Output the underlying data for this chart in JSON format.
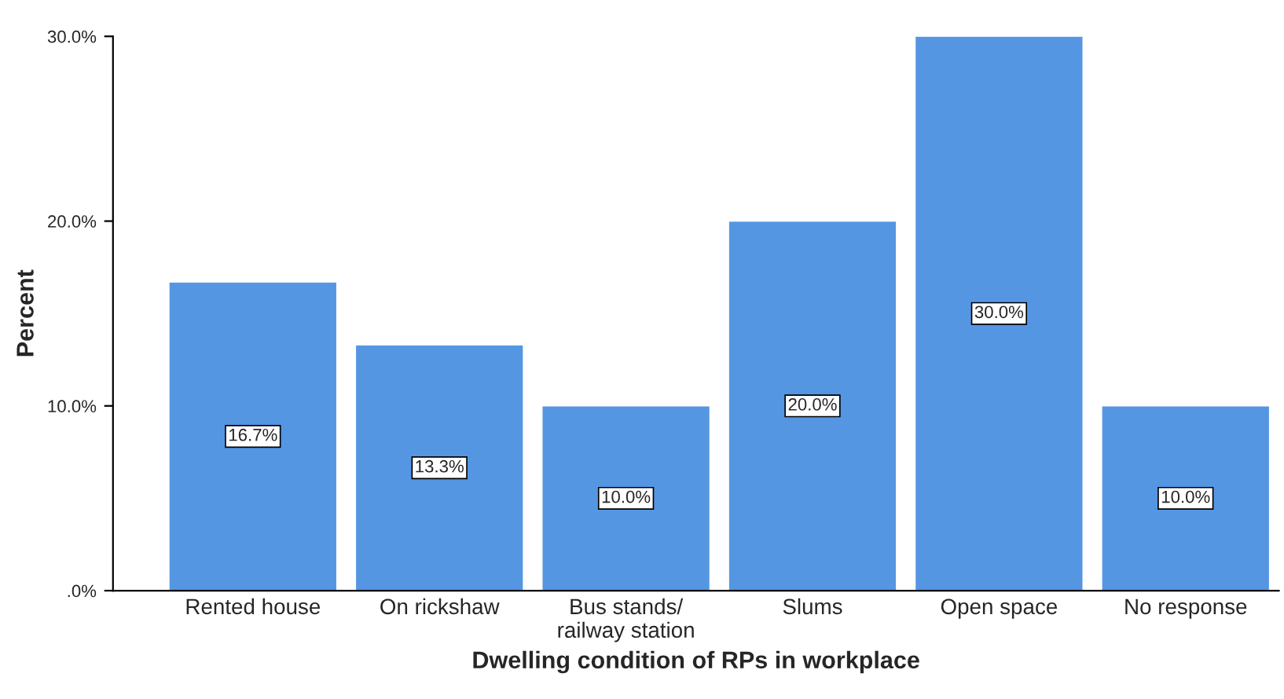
{
  "chart_data": {
    "type": "bar",
    "xlabel": "Dwelling condition of RPs in workplace",
    "ylabel": "Percent",
    "categories": [
      "Rented house",
      "On rickshaw",
      "Bus stands/\nrailway station",
      "Slums",
      "Open space",
      "No response"
    ],
    "values": [
      16.7,
      13.3,
      10.0,
      20.0,
      30.0,
      10.0
    ],
    "value_labels": [
      "16.7%",
      "13.3%",
      "10.0%",
      "20.0%",
      "30.0%",
      "10.0%"
    ],
    "color": "#5596e3",
    "ylim": [
      0,
      30
    ],
    "yticks": [
      {
        "value": 0,
        "label": ".0%"
      },
      {
        "value": 10,
        "label": "10.0%"
      },
      {
        "value": 20,
        "label": "20.0%"
      },
      {
        "value": 30,
        "label": "30.0%"
      }
    ],
    "grid": false
  }
}
